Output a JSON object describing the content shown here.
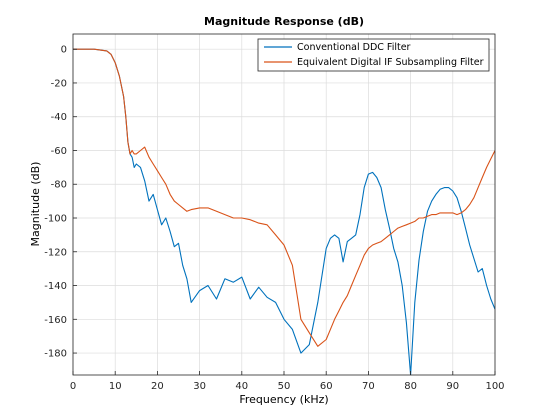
{
  "chart_data": {
    "type": "line",
    "title": "Magnitude Response (dB)",
    "xlabel": "Frequency (kHz)",
    "ylabel": "Magnitude (dB)",
    "xlim": [
      0,
      100
    ],
    "ylim": [
      -193,
      9
    ],
    "xticks": [
      0,
      10,
      20,
      30,
      40,
      50,
      60,
      70,
      80,
      90,
      100
    ],
    "yticks": [
      0,
      -20,
      -40,
      -60,
      -80,
      -100,
      -120,
      -140,
      -160,
      -180
    ],
    "grid": true,
    "legend_position": "top-right",
    "series": [
      {
        "name": "Conventional DDC Filter",
        "color": "#0072BD",
        "x": [
          0,
          5,
          8,
          9,
          10,
          11,
          12,
          12.5,
          13,
          13.5,
          14,
          14.5,
          15,
          16,
          17,
          18,
          19,
          20,
          21,
          22,
          23,
          24,
          25,
          26,
          27,
          28,
          30,
          32,
          34,
          36,
          38,
          40,
          42,
          44,
          46,
          48,
          50,
          52,
          54,
          56,
          58,
          60,
          61,
          62,
          63,
          64,
          65,
          66,
          67,
          68,
          69,
          70,
          71,
          72,
          73,
          74,
          75,
          76,
          77,
          78,
          79,
          80,
          81,
          82,
          83,
          84,
          85,
          86,
          87,
          88,
          89,
          90,
          91,
          92,
          93,
          94,
          95,
          96,
          97,
          98,
          99,
          100
        ],
        "y": [
          0,
          0,
          -1,
          -3,
          -8,
          -16,
          -28,
          -40,
          -55,
          -62,
          -64,
          -70,
          -68,
          -70,
          -78,
          -90,
          -86,
          -95,
          -104,
          -100,
          -108,
          -117,
          -115,
          -128,
          -136,
          -150,
          -143,
          -140,
          -148,
          -136,
          -138,
          -135,
          -148,
          -141,
          -147,
          -150,
          -160,
          -166,
          -180,
          -175,
          -150,
          -118,
          -112,
          -110,
          -112,
          -126,
          -114,
          -112,
          -110,
          -98,
          -82,
          -74,
          -73,
          -76,
          -82,
          -95,
          -106,
          -118,
          -126,
          -140,
          -162,
          -193,
          -150,
          -125,
          -108,
          -96,
          -90,
          -86,
          -83,
          -82,
          -82,
          -84,
          -88,
          -96,
          -106,
          -116,
          -124,
          -132,
          -130,
          -140,
          -148,
          -154
        ]
      },
      {
        "name": "Equivalent Digital IF Subsampling Filter",
        "color": "#D95319",
        "x": [
          0,
          5,
          8,
          9,
          10,
          11,
          12,
          12.5,
          13,
          13.5,
          14,
          14.5,
          15,
          16,
          17,
          18,
          19,
          20,
          21,
          22,
          23,
          24,
          25,
          26,
          27,
          28,
          30,
          32,
          34,
          36,
          38,
          40,
          42,
          44,
          46,
          48,
          50,
          52,
          54,
          56,
          58,
          60,
          61,
          62,
          63,
          64,
          65,
          66,
          67,
          68,
          69,
          70,
          71,
          72,
          73,
          74,
          75,
          76,
          77,
          78,
          79,
          80,
          81,
          82,
          83,
          84,
          85,
          86,
          87,
          88,
          89,
          90,
          91,
          92,
          93,
          94,
          95,
          96,
          97,
          98,
          99,
          100
        ],
        "y": [
          0,
          0,
          -1,
          -3,
          -8,
          -16,
          -28,
          -40,
          -55,
          -62,
          -60,
          -62,
          -62,
          -60,
          -58,
          -64,
          -68,
          -72,
          -76,
          -80,
          -86,
          -90,
          -92,
          -94,
          -96,
          -95,
          -94,
          -94,
          -96,
          -98,
          -100,
          -100,
          -101,
          -103,
          -104,
          -110,
          -116,
          -128,
          -160,
          -168,
          -176,
          -172,
          -166,
          -160,
          -155,
          -150,
          -146,
          -140,
          -134,
          -128,
          -122,
          -118,
          -116,
          -115,
          -114,
          -112,
          -110,
          -108,
          -106,
          -105,
          -104,
          -103,
          -102,
          -100,
          -100,
          -99,
          -98,
          -98,
          -97,
          -97,
          -97,
          -97,
          -98,
          -97,
          -95,
          -92,
          -88,
          -82,
          -76,
          -70,
          -65,
          -60
        ]
      }
    ]
  }
}
